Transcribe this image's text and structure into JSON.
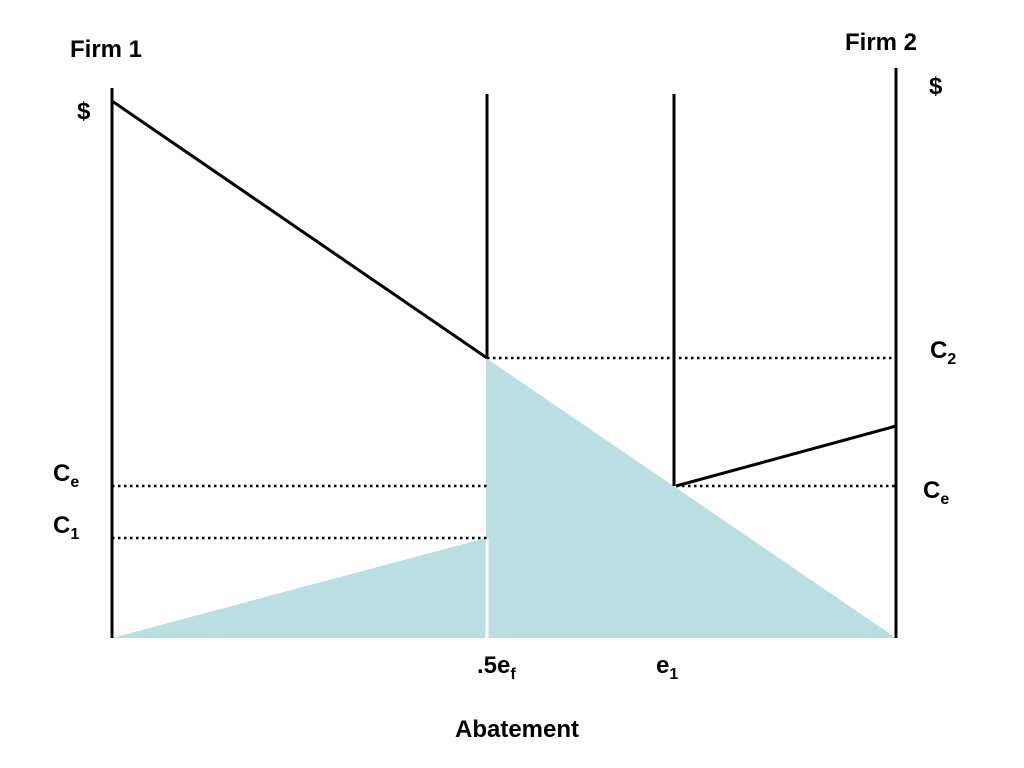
{
  "labels": {
    "firm1": "Firm 1",
    "firm2": "Firm 2",
    "dollar_left": "$",
    "dollar_right": "$",
    "ce_left_main": "C",
    "ce_left_sub": "e",
    "c1_main": "C",
    "c1_sub": "1",
    "c2_main": "C",
    "c2_sub": "2",
    "ce_right_main": "C",
    "ce_right_sub": "e",
    "half_ef_main": ".5e",
    "half_ef_sub": "f",
    "e1_main": "e",
    "e1_sub": "1",
    "x_axis": "Abatement"
  },
  "colors": {
    "shade": "#b9dfe2",
    "line": "#000000"
  }
}
